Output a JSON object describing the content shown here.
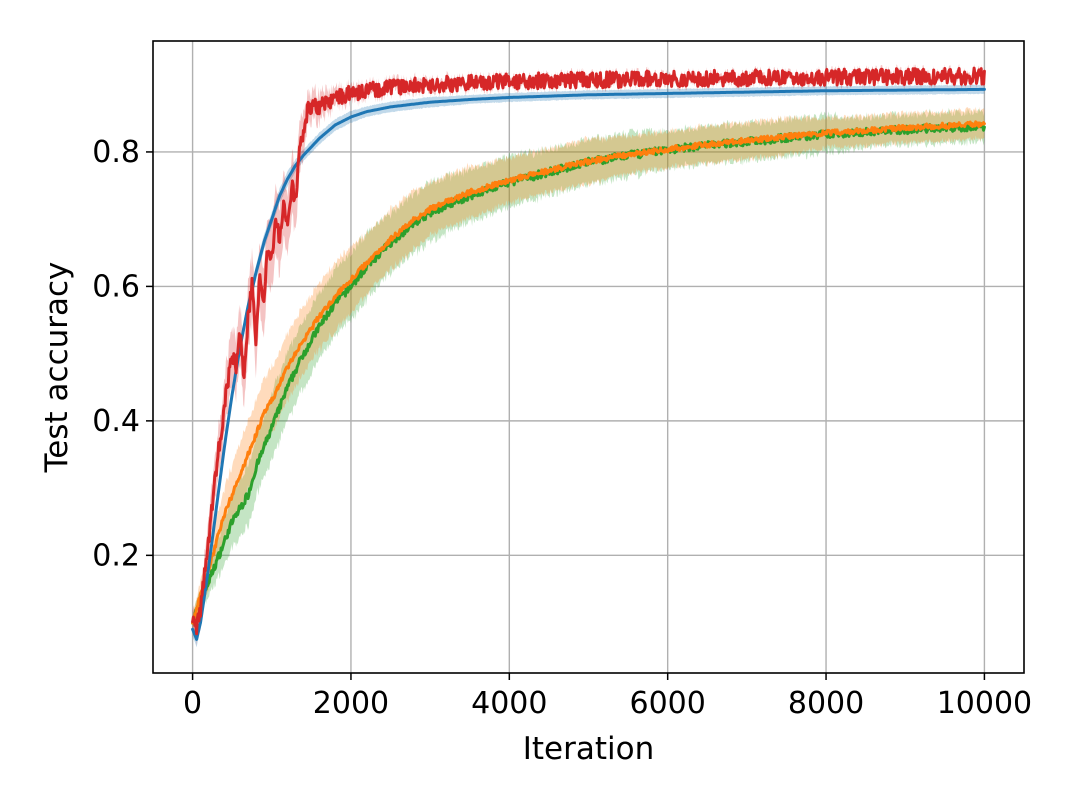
{
  "chart_data": {
    "type": "line",
    "title": "",
    "xlabel": "Iteration",
    "ylabel": "Test accuracy",
    "xlim": [
      -500,
      10500
    ],
    "ylim": [
      0.025,
      0.965
    ],
    "grid": true,
    "legend": "none",
    "x_ticks": [
      0,
      2000,
      4000,
      6000,
      8000,
      10000
    ],
    "x_tick_labels": [
      "0",
      "2000",
      "4000",
      "6000",
      "8000",
      "10000"
    ],
    "y_ticks": [
      0.2,
      0.4,
      0.6,
      0.8
    ],
    "y_tick_labels": [
      "0.2",
      "0.4",
      "0.6",
      "0.8"
    ],
    "series": [
      {
        "color": "#2ca02c",
        "band_color": "#2ca02c",
        "x": [
          0,
          100,
          200,
          300,
          400,
          500,
          600,
          700,
          800,
          900,
          1000,
          1200,
          1400,
          1600,
          1800,
          2000,
          2200,
          2500,
          2800,
          3000,
          3500,
          4000,
          4500,
          5000,
          5500,
          6000,
          6500,
          7000,
          7500,
          8000,
          8500,
          9000,
          9500,
          10000
        ],
        "y": [
          0.105,
          0.13,
          0.16,
          0.19,
          0.22,
          0.25,
          0.27,
          0.29,
          0.33,
          0.36,
          0.39,
          0.45,
          0.5,
          0.54,
          0.575,
          0.6,
          0.63,
          0.665,
          0.695,
          0.71,
          0.735,
          0.755,
          0.77,
          0.785,
          0.795,
          0.803,
          0.81,
          0.815,
          0.821,
          0.826,
          0.83,
          0.833,
          0.836,
          0.838
        ],
        "spread": [
          0.01,
          0.015,
          0.02,
          0.025,
          0.03,
          0.035,
          0.04,
          0.04,
          0.04,
          0.04,
          0.045,
          0.045,
          0.045,
          0.045,
          0.045,
          0.045,
          0.045,
          0.04,
          0.04,
          0.04,
          0.035,
          0.035,
          0.03,
          0.03,
          0.03,
          0.025,
          0.025,
          0.025,
          0.025,
          0.025,
          0.02,
          0.02,
          0.02,
          0.02
        ],
        "noise": 0.006
      },
      {
        "color": "#ff7f0e",
        "band_color": "#ff7f0e",
        "x": [
          0,
          100,
          200,
          300,
          400,
          500,
          600,
          700,
          800,
          900,
          1000,
          1200,
          1400,
          1600,
          1800,
          2000,
          2200,
          2500,
          2800,
          3000,
          3500,
          4000,
          4500,
          5000,
          5500,
          6000,
          6500,
          7000,
          7500,
          8000,
          8500,
          9000,
          9500,
          10000
        ],
        "y": [
          0.1,
          0.14,
          0.18,
          0.22,
          0.26,
          0.29,
          0.32,
          0.35,
          0.38,
          0.41,
          0.43,
          0.48,
          0.52,
          0.555,
          0.585,
          0.61,
          0.635,
          0.67,
          0.7,
          0.715,
          0.74,
          0.758,
          0.772,
          0.786,
          0.796,
          0.804,
          0.811,
          0.817,
          0.823,
          0.828,
          0.832,
          0.836,
          0.839,
          0.842
        ],
        "spread": [
          0.01,
          0.02,
          0.025,
          0.03,
          0.035,
          0.04,
          0.045,
          0.045,
          0.045,
          0.045,
          0.045,
          0.045,
          0.045,
          0.045,
          0.045,
          0.045,
          0.04,
          0.04,
          0.04,
          0.035,
          0.035,
          0.03,
          0.03,
          0.03,
          0.025,
          0.025,
          0.025,
          0.025,
          0.025,
          0.02,
          0.02,
          0.02,
          0.02,
          0.02
        ],
        "noise": 0.004
      },
      {
        "color": "#1f77b4",
        "band_color": "#1f77b4",
        "x": [
          0,
          50,
          100,
          200,
          300,
          400,
          500,
          600,
          700,
          800,
          900,
          1000,
          1100,
          1200,
          1300,
          1400,
          1600,
          1800,
          2000,
          2200,
          2500,
          3000,
          3500,
          4000,
          4500,
          5000,
          6000,
          7000,
          8000,
          9000,
          10000
        ],
        "y": [
          0.09,
          0.075,
          0.1,
          0.18,
          0.27,
          0.36,
          0.44,
          0.51,
          0.57,
          0.62,
          0.665,
          0.7,
          0.735,
          0.76,
          0.78,
          0.795,
          0.82,
          0.84,
          0.852,
          0.86,
          0.867,
          0.874,
          0.878,
          0.881,
          0.883,
          0.885,
          0.887,
          0.889,
          0.891,
          0.892,
          0.893
        ],
        "spread": [
          0.01,
          0.01,
          0.01,
          0.01,
          0.01,
          0.01,
          0.01,
          0.01,
          0.01,
          0.01,
          0.01,
          0.01,
          0.01,
          0.01,
          0.008,
          0.008,
          0.008,
          0.008,
          0.008,
          0.007,
          0.007,
          0.007,
          0.006,
          0.006,
          0.006,
          0.006,
          0.006,
          0.006,
          0.006,
          0.006,
          0.006
        ],
        "noise": 0.0
      },
      {
        "color": "#d62728",
        "band_color": "#d62728",
        "x": [
          0,
          50,
          100,
          200,
          300,
          400,
          500,
          550,
          600,
          650,
          700,
          750,
          800,
          850,
          900,
          950,
          1000,
          1050,
          1100,
          1150,
          1200,
          1250,
          1300,
          1350,
          1400,
          1450,
          1500,
          1600,
          1700,
          1800,
          1900,
          2000,
          2200,
          2500,
          3000,
          3500,
          4000,
          5000,
          6000,
          7000,
          8000,
          9000,
          10000
        ],
        "y": [
          0.1,
          0.09,
          0.12,
          0.22,
          0.33,
          0.42,
          0.5,
          0.48,
          0.53,
          0.46,
          0.55,
          0.6,
          0.52,
          0.62,
          0.58,
          0.66,
          0.64,
          0.7,
          0.67,
          0.72,
          0.7,
          0.75,
          0.73,
          0.8,
          0.83,
          0.86,
          0.87,
          0.865,
          0.875,
          0.88,
          0.884,
          0.888,
          0.891,
          0.895,
          0.9,
          0.903,
          0.905,
          0.907,
          0.909,
          0.91,
          0.911,
          0.912,
          0.913
        ],
        "spread": [
          0.015,
          0.015,
          0.02,
          0.03,
          0.03,
          0.035,
          0.04,
          0.04,
          0.04,
          0.04,
          0.045,
          0.045,
          0.045,
          0.045,
          0.045,
          0.045,
          0.045,
          0.045,
          0.045,
          0.045,
          0.04,
          0.04,
          0.04,
          0.035,
          0.03,
          0.02,
          0.02,
          0.02,
          0.015,
          0.012,
          0.01,
          0.01,
          0.008,
          0.008,
          0.007,
          0.007,
          0.006,
          0.006,
          0.006,
          0.006,
          0.006,
          0.006,
          0.006
        ],
        "noise": 0.012
      }
    ]
  },
  "colors": {
    "axis": "#000000",
    "grid": "#b0b0b0",
    "background": "#ffffff"
  }
}
